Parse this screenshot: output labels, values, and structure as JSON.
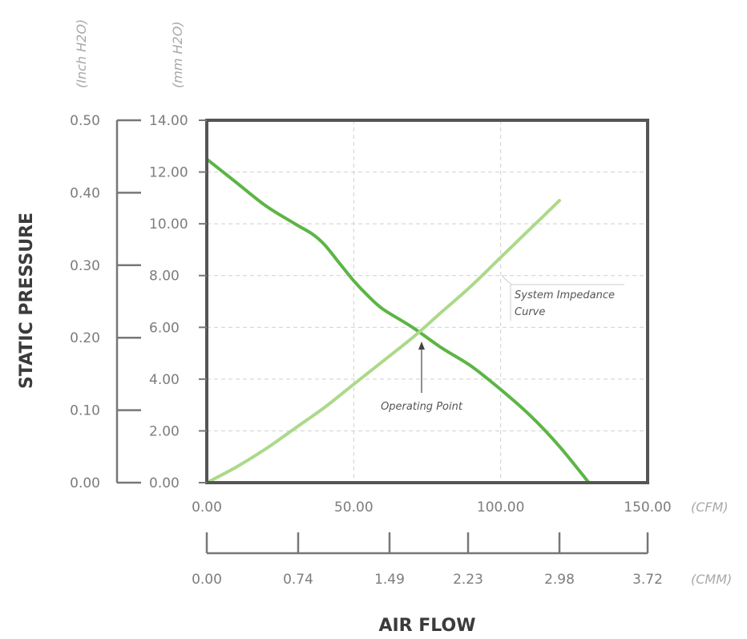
{
  "chart_data": {
    "type": "line",
    "ylabel": "STATIC PRESSURE",
    "xlabel": "AIR FLOW",
    "y_primary": {
      "unit": "(mm H2O)",
      "range": [
        0,
        14
      ],
      "ticks": [
        "0.00",
        "2.00",
        "4.00",
        "6.00",
        "8.00",
        "10.00",
        "12.00",
        "14.00"
      ]
    },
    "y_secondary": {
      "unit": "(Inch H2O)",
      "ticks": [
        "0.00",
        "0.10",
        "0.20",
        "0.30",
        "0.40",
        "0.50"
      ]
    },
    "x_primary": {
      "unit": "(CFM)",
      "range": [
        0,
        150
      ],
      "ticks": [
        "0.00",
        "50.00",
        "100.00",
        "150.00"
      ]
    },
    "x_secondary": {
      "unit": "(CMM)",
      "ticks": [
        "0.00",
        "0.74",
        "1.49",
        "2.23",
        "2.98",
        "3.72"
      ]
    },
    "grid": true,
    "series": [
      {
        "color": "#5cb545",
        "x": [
          0,
          10,
          20,
          30,
          36,
          40,
          45,
          50,
          55,
          60,
          70,
          80,
          90,
          100,
          110,
          120,
          130
        ],
        "y": [
          12.5,
          11.6,
          10.7,
          10.0,
          9.6,
          9.2,
          8.5,
          7.8,
          7.2,
          6.7,
          6.0,
          5.2,
          4.5,
          3.6,
          2.6,
          1.4,
          0.0
        ]
      },
      {
        "color": "#acd98a",
        "x": [
          0,
          10,
          20,
          30,
          40,
          50,
          60,
          70,
          80,
          90,
          100,
          110,
          120
        ],
        "y": [
          0.0,
          0.6,
          1.3,
          2.1,
          2.9,
          3.8,
          4.7,
          5.6,
          6.6,
          7.6,
          8.7,
          9.8,
          10.9
        ]
      }
    ],
    "annotations": {
      "operating_point": {
        "label": "Operating Point",
        "x": 73,
        "y": 5.7
      },
      "impedance": {
        "label_line1": "System Impedance",
        "label_line2": "Curve"
      }
    }
  }
}
